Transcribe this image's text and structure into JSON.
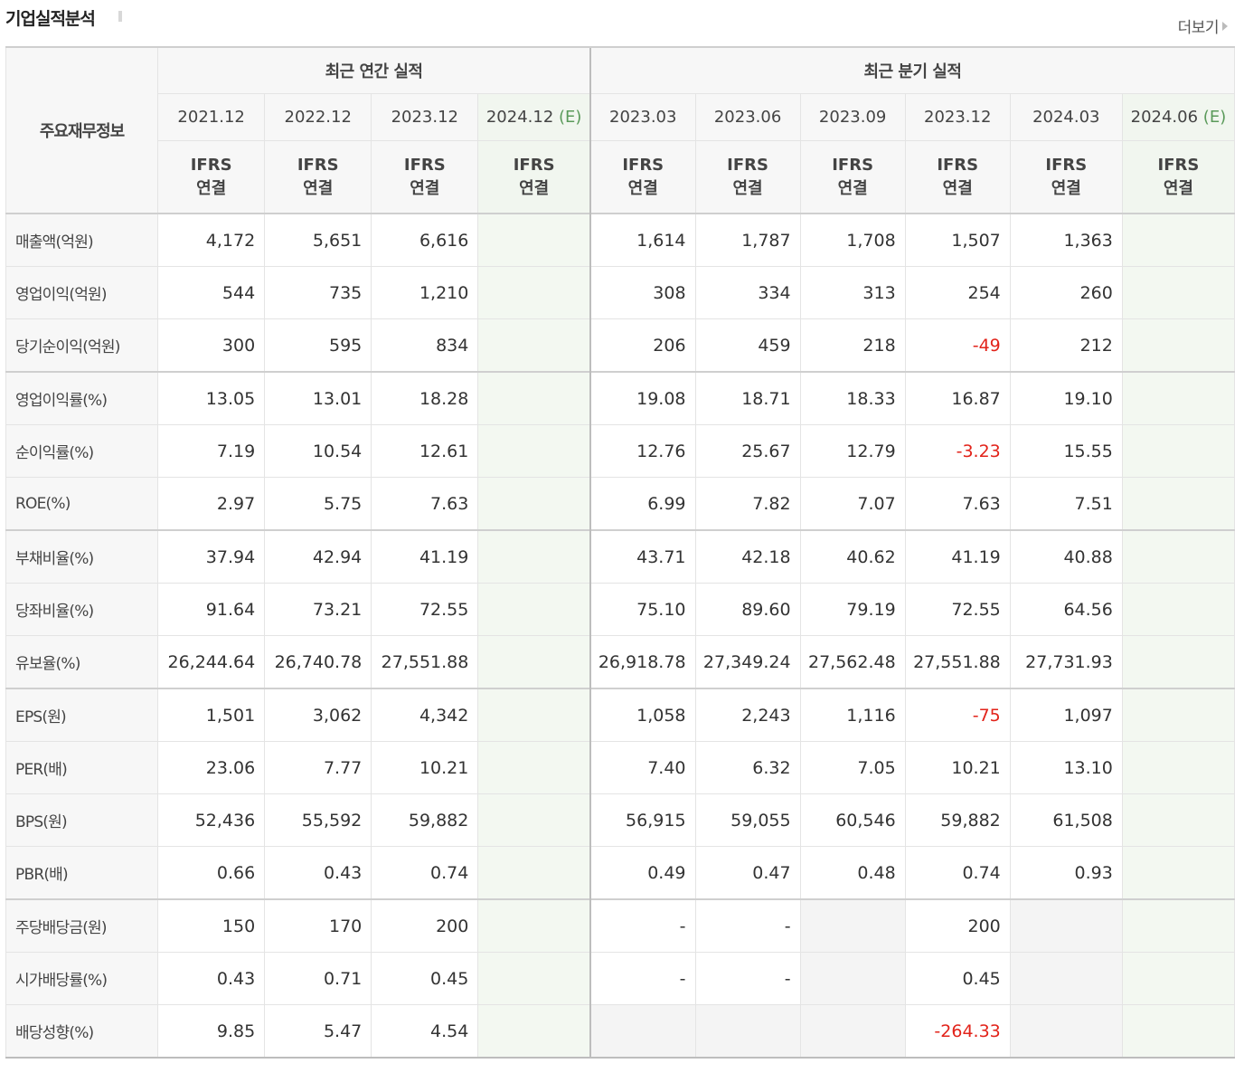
{
  "header": {
    "title": "기업실적분석",
    "more_label": "더보기"
  },
  "table": {
    "row_header_label": "주요재무정보",
    "groups": [
      "최근 연간 실적",
      "최근 분기 실적"
    ],
    "periods": [
      {
        "label": "2021.12",
        "est": ""
      },
      {
        "label": "2022.12",
        "est": ""
      },
      {
        "label": "2023.12",
        "est": ""
      },
      {
        "label": "2024.12",
        "est": "(E)"
      },
      {
        "label": "2023.03",
        "est": ""
      },
      {
        "label": "2023.06",
        "est": ""
      },
      {
        "label": "2023.09",
        "est": ""
      },
      {
        "label": "2023.12",
        "est": ""
      },
      {
        "label": "2024.03",
        "est": ""
      },
      {
        "label": "2024.06",
        "est": "(E)"
      }
    ],
    "standard": {
      "line1": "IFRS",
      "line2": "연결"
    },
    "rows": [
      {
        "label": "매출액(억원)",
        "values": [
          "4,172",
          "5,651",
          "6,616",
          "",
          "1,614",
          "1,787",
          "1,708",
          "1,507",
          "1,363",
          ""
        ]
      },
      {
        "label": "영업이익(억원)",
        "values": [
          "544",
          "735",
          "1,210",
          "",
          "308",
          "334",
          "313",
          "254",
          "260",
          ""
        ]
      },
      {
        "label": "당기순이익(억원)",
        "values": [
          "300",
          "595",
          "834",
          "",
          "206",
          "459",
          "218",
          "-49",
          "212",
          ""
        ]
      },
      {
        "label": "영업이익률(%)",
        "values": [
          "13.05",
          "13.01",
          "18.28",
          "",
          "19.08",
          "18.71",
          "18.33",
          "16.87",
          "19.10",
          ""
        ]
      },
      {
        "label": "순이익률(%)",
        "values": [
          "7.19",
          "10.54",
          "12.61",
          "",
          "12.76",
          "25.67",
          "12.79",
          "-3.23",
          "15.55",
          ""
        ]
      },
      {
        "label": "ROE(%)",
        "values": [
          "2.97",
          "5.75",
          "7.63",
          "",
          "6.99",
          "7.82",
          "7.07",
          "7.63",
          "7.51",
          ""
        ]
      },
      {
        "label": "부채비율(%)",
        "values": [
          "37.94",
          "42.94",
          "41.19",
          "",
          "43.71",
          "42.18",
          "40.62",
          "41.19",
          "40.88",
          ""
        ]
      },
      {
        "label": "당좌비율(%)",
        "values": [
          "91.64",
          "73.21",
          "72.55",
          "",
          "75.10",
          "89.60",
          "79.19",
          "72.55",
          "64.56",
          ""
        ]
      },
      {
        "label": "유보율(%)",
        "values": [
          "26,244.64",
          "26,740.78",
          "27,551.88",
          "",
          "26,918.78",
          "27,349.24",
          "27,562.48",
          "27,551.88",
          "27,731.93",
          ""
        ]
      },
      {
        "label": "EPS(원)",
        "values": [
          "1,501",
          "3,062",
          "4,342",
          "",
          "1,058",
          "2,243",
          "1,116",
          "-75",
          "1,097",
          ""
        ]
      },
      {
        "label": "PER(배)",
        "values": [
          "23.06",
          "7.77",
          "10.21",
          "",
          "7.40",
          "6.32",
          "7.05",
          "10.21",
          "13.10",
          ""
        ]
      },
      {
        "label": "BPS(원)",
        "values": [
          "52,436",
          "55,592",
          "59,882",
          "",
          "56,915",
          "59,055",
          "60,546",
          "59,882",
          "61,508",
          ""
        ]
      },
      {
        "label": "PBR(배)",
        "values": [
          "0.66",
          "0.43",
          "0.74",
          "",
          "0.49",
          "0.47",
          "0.48",
          "0.74",
          "0.93",
          ""
        ]
      },
      {
        "label": "주당배당금(원)",
        "values": [
          "150",
          "170",
          "200",
          "",
          "-",
          "-",
          "",
          "200",
          "",
          ""
        ]
      },
      {
        "label": "시가배당률(%)",
        "values": [
          "0.43",
          "0.71",
          "0.45",
          "",
          "-",
          "-",
          "",
          "0.45",
          "",
          ""
        ]
      },
      {
        "label": "배당성향(%)",
        "values": [
          "9.85",
          "5.47",
          "4.54",
          "",
          "",
          "",
          "",
          "-264.33",
          "",
          ""
        ]
      }
    ],
    "colors": {
      "negative": "#e2231a",
      "standard": "#e47a3c",
      "estimate_label": "#5a9a5a",
      "estimate_bg": "#f3f8f1"
    }
  }
}
